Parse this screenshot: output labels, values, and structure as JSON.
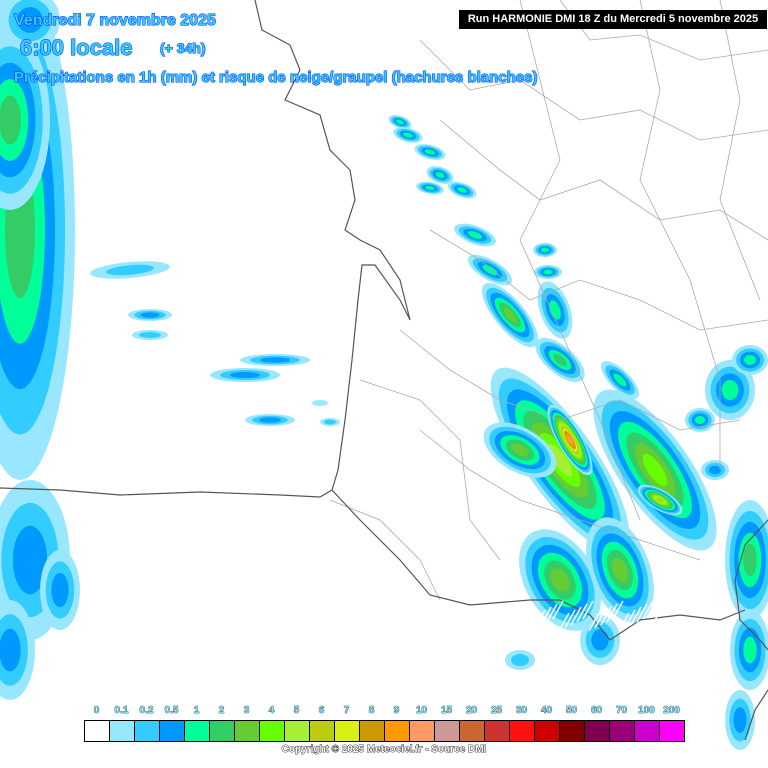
{
  "header": {
    "date": "Vendredi 7 novembre 2025",
    "time": "6:00 locale",
    "lead": "(+ 34h)",
    "description": "Précipitations en 1h (mm) et risque de neige/graupel (hachures blanches)",
    "run": "Run HARMONIE DMI 18 Z du Mercredi 5 novembre 2025"
  },
  "legend": {
    "labels": [
      "0",
      "0.1",
      "0.2",
      "0.5",
      "1",
      "2",
      "3",
      "4",
      "5",
      "6",
      "7",
      "8",
      "9",
      "10",
      "15",
      "20",
      "25",
      "30",
      "40",
      "50",
      "60",
      "70",
      "100",
      "200"
    ],
    "colors": [
      "#ffffff",
      "#99e6ff",
      "#33ccff",
      "#0099ff",
      "#00ff99",
      "#33cc66",
      "#66cc33",
      "#66ff00",
      "#a5f032",
      "#bbcc11",
      "#d9ee11",
      "#cc9900",
      "#ff9900",
      "#ff9966",
      "#cc9999",
      "#cc6633",
      "#cc3333",
      "#ff1111",
      "#cc0000",
      "#800000",
      "#800050",
      "#990077",
      "#cc00cc",
      "#ff00ff"
    ]
  },
  "footer": {
    "copyright": "Copyright © 2025 Meteociel.fr - Source DMI"
  },
  "map": {
    "coast_color": "#555555",
    "border_color": "#aaaaaa",
    "snow_hatch_color": "#ffffff"
  }
}
